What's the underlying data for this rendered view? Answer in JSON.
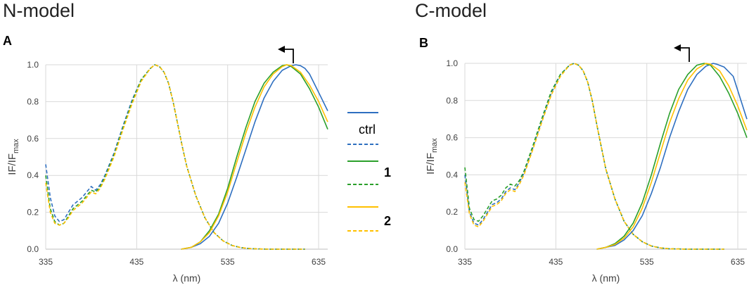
{
  "titles": {
    "left": "N-model",
    "right": "C-model"
  },
  "legend": {
    "entries": [
      {
        "label": "ctrl",
        "color": "#2E6FC0"
      },
      {
        "label": "1",
        "color": "#2BA02B"
      },
      {
        "label": "2",
        "color": "#FFC000"
      }
    ]
  },
  "colors": {
    "ctrl": "#2E6FC0",
    "1": "#2BA02B",
    "2": "#FFC000",
    "grid": "#D9D9D9",
    "axis": "#BFBFBF"
  },
  "chart_data": [
    {
      "type": "line",
      "panel": "A",
      "title": "N-model",
      "xlabel": "λ (nm)",
      "ylabel": "IF/IF",
      "ylabel_sub": "max",
      "xlim": [
        335,
        645
      ],
      "ylim": [
        0,
        1.0
      ],
      "xticks": [
        335,
        435,
        535,
        635
      ],
      "yticks": [
        "0.0",
        "0.2",
        "0.4",
        "0.6",
        "0.8",
        "1.0"
      ],
      "annotation": "arrow pointing left (blue shift of emission maximum)",
      "series": [
        {
          "name": "ctrl",
          "style": "solid",
          "kind": "emission",
          "x": [
            484,
            495,
            505,
            515,
            525,
            535,
            545,
            555,
            565,
            575,
            585,
            595,
            605,
            610,
            615,
            620,
            625,
            635,
            645
          ],
          "y": [
            0.0,
            0.01,
            0.03,
            0.07,
            0.14,
            0.25,
            0.39,
            0.54,
            0.69,
            0.82,
            0.91,
            0.97,
            0.995,
            1.0,
            0.995,
            0.98,
            0.95,
            0.85,
            0.75
          ]
        },
        {
          "name": "1",
          "style": "solid",
          "kind": "emission",
          "x": [
            484,
            495,
            505,
            515,
            525,
            535,
            545,
            555,
            565,
            575,
            585,
            595,
            600,
            605,
            615,
            625,
            635,
            645
          ],
          "y": [
            0.0,
            0.01,
            0.04,
            0.1,
            0.19,
            0.33,
            0.5,
            0.66,
            0.8,
            0.9,
            0.96,
            0.995,
            1.0,
            0.99,
            0.95,
            0.87,
            0.77,
            0.65
          ]
        },
        {
          "name": "2",
          "style": "solid",
          "kind": "emission",
          "x": [
            484,
            495,
            505,
            515,
            525,
            535,
            545,
            555,
            565,
            575,
            585,
            595,
            600,
            605,
            615,
            625,
            635,
            645
          ],
          "y": [
            0.0,
            0.01,
            0.04,
            0.09,
            0.18,
            0.31,
            0.47,
            0.63,
            0.77,
            0.88,
            0.95,
            0.99,
            1.0,
            0.995,
            0.96,
            0.89,
            0.8,
            0.69
          ]
        },
        {
          "name": "ctrl",
          "style": "dashed",
          "kind": "excitation",
          "x": [
            335,
            340,
            345,
            350,
            355,
            360,
            365,
            370,
            375,
            380,
            385,
            390,
            395,
            400,
            410,
            420,
            430,
            440,
            450,
            455,
            460,
            465,
            470,
            475,
            480,
            485,
            490,
            500,
            510,
            520,
            530,
            540,
            550,
            560,
            570,
            580,
            590,
            600,
            610,
            620
          ],
          "y": [
            0.46,
            0.28,
            0.18,
            0.15,
            0.16,
            0.2,
            0.24,
            0.26,
            0.28,
            0.31,
            0.34,
            0.32,
            0.35,
            0.4,
            0.52,
            0.67,
            0.81,
            0.92,
            0.98,
            1.0,
            0.99,
            0.96,
            0.9,
            0.8,
            0.68,
            0.56,
            0.45,
            0.29,
            0.17,
            0.09,
            0.045,
            0.02,
            0.008,
            0.003,
            0.001,
            0.0,
            0.0,
            0.0,
            0.0,
            0.0
          ]
        },
        {
          "name": "1",
          "style": "dashed",
          "kind": "excitation",
          "x": [
            335,
            340,
            345,
            350,
            355,
            360,
            365,
            370,
            375,
            380,
            385,
            390,
            395,
            400,
            410,
            420,
            430,
            440,
            450,
            455,
            460,
            465,
            470,
            475,
            480,
            485,
            490,
            500,
            510,
            520,
            530,
            540,
            550,
            560,
            570,
            580,
            590,
            600,
            610,
            620
          ],
          "y": [
            0.4,
            0.22,
            0.15,
            0.13,
            0.14,
            0.18,
            0.22,
            0.24,
            0.26,
            0.29,
            0.32,
            0.31,
            0.34,
            0.39,
            0.51,
            0.66,
            0.8,
            0.92,
            0.98,
            1.0,
            0.99,
            0.96,
            0.9,
            0.8,
            0.68,
            0.56,
            0.45,
            0.29,
            0.17,
            0.09,
            0.045,
            0.02,
            0.008,
            0.003,
            0.001,
            0.0,
            0.0,
            0.0,
            0.0,
            0.0
          ]
        },
        {
          "name": "2",
          "style": "dashed",
          "kind": "excitation",
          "x": [
            335,
            340,
            345,
            350,
            355,
            360,
            365,
            370,
            375,
            380,
            385,
            390,
            395,
            400,
            410,
            420,
            430,
            440,
            450,
            455,
            460,
            465,
            470,
            475,
            480,
            485,
            490,
            500,
            510,
            520,
            530,
            540,
            550,
            560,
            570,
            580,
            590,
            600,
            610,
            620
          ],
          "y": [
            0.36,
            0.2,
            0.14,
            0.13,
            0.14,
            0.17,
            0.21,
            0.23,
            0.25,
            0.28,
            0.31,
            0.3,
            0.33,
            0.38,
            0.5,
            0.65,
            0.79,
            0.91,
            0.98,
            1.0,
            0.99,
            0.96,
            0.9,
            0.8,
            0.68,
            0.56,
            0.45,
            0.29,
            0.17,
            0.09,
            0.045,
            0.02,
            0.008,
            0.003,
            0.001,
            0.0,
            0.0,
            0.0,
            0.0,
            0.0
          ]
        }
      ]
    },
    {
      "type": "line",
      "panel": "B",
      "title": "C-model",
      "xlabel": "λ (nm)",
      "ylabel": "IF/IF",
      "ylabel_sub": "max",
      "xlim": [
        335,
        645
      ],
      "ylim": [
        0,
        1.0
      ],
      "xticks": [
        335,
        435,
        535,
        635
      ],
      "yticks": [
        "0.0",
        "0.2",
        "0.4",
        "0.6",
        "0.8",
        "1.0"
      ],
      "annotation": "arrow pointing left (blue shift of emission maximum)",
      "series": [
        {
          "name": "ctrl",
          "style": "solid",
          "kind": "emission",
          "x": [
            480,
            490,
            500,
            510,
            520,
            530,
            540,
            550,
            560,
            570,
            580,
            590,
            600,
            608,
            612,
            620,
            630,
            645
          ],
          "y": [
            0.0,
            0.01,
            0.02,
            0.05,
            0.1,
            0.18,
            0.3,
            0.44,
            0.6,
            0.74,
            0.86,
            0.94,
            0.985,
            1.0,
            0.995,
            0.98,
            0.93,
            0.7
          ]
        },
        {
          "name": "1",
          "style": "solid",
          "kind": "emission",
          "x": [
            480,
            490,
            500,
            510,
            520,
            530,
            540,
            550,
            560,
            570,
            580,
            590,
            598,
            605,
            615,
            625,
            635,
            645
          ],
          "y": [
            0.0,
            0.01,
            0.03,
            0.07,
            0.14,
            0.25,
            0.4,
            0.57,
            0.73,
            0.86,
            0.94,
            0.99,
            1.0,
            0.99,
            0.93,
            0.84,
            0.73,
            0.6
          ]
        },
        {
          "name": "2",
          "style": "solid",
          "kind": "emission",
          "x": [
            480,
            490,
            500,
            510,
            520,
            530,
            540,
            550,
            560,
            570,
            580,
            590,
            600,
            605,
            615,
            625,
            635,
            645
          ],
          "y": [
            0.0,
            0.01,
            0.025,
            0.06,
            0.12,
            0.22,
            0.36,
            0.52,
            0.68,
            0.81,
            0.91,
            0.97,
            1.0,
            0.995,
            0.96,
            0.88,
            0.77,
            0.64
          ]
        },
        {
          "name": "ctrl",
          "style": "dashed",
          "kind": "excitation",
          "x": [
            335,
            340,
            345,
            350,
            355,
            360,
            365,
            370,
            375,
            380,
            385,
            390,
            395,
            400,
            410,
            420,
            430,
            440,
            450,
            455,
            460,
            465,
            470,
            475,
            480,
            485,
            490,
            500,
            510,
            520,
            530,
            540,
            550,
            560,
            570,
            580,
            590,
            600,
            610,
            620
          ],
          "y": [
            0.4,
            0.2,
            0.14,
            0.13,
            0.16,
            0.2,
            0.24,
            0.25,
            0.27,
            0.31,
            0.33,
            0.32,
            0.36,
            0.41,
            0.55,
            0.7,
            0.84,
            0.94,
            0.99,
            1.0,
            0.99,
            0.96,
            0.9,
            0.8,
            0.67,
            0.55,
            0.43,
            0.27,
            0.15,
            0.08,
            0.04,
            0.017,
            0.007,
            0.002,
            0.001,
            0.0,
            0.0,
            0.0,
            0.0,
            0.0
          ]
        },
        {
          "name": "1",
          "style": "dashed",
          "kind": "excitation",
          "x": [
            335,
            340,
            345,
            350,
            355,
            360,
            365,
            370,
            375,
            380,
            385,
            390,
            395,
            400,
            410,
            420,
            430,
            440,
            450,
            455,
            460,
            465,
            470,
            475,
            480,
            485,
            490,
            500,
            510,
            520,
            530,
            540,
            550,
            560,
            570,
            580,
            590,
            600,
            610,
            620
          ],
          "y": [
            0.44,
            0.22,
            0.16,
            0.15,
            0.18,
            0.22,
            0.26,
            0.27,
            0.29,
            0.33,
            0.35,
            0.34,
            0.37,
            0.42,
            0.56,
            0.71,
            0.85,
            0.94,
            0.99,
            1.0,
            0.99,
            0.96,
            0.9,
            0.8,
            0.67,
            0.55,
            0.43,
            0.27,
            0.15,
            0.08,
            0.04,
            0.017,
            0.007,
            0.002,
            0.001,
            0.0,
            0.0,
            0.0,
            0.0,
            0.0
          ]
        },
        {
          "name": "2",
          "style": "dashed",
          "kind": "excitation",
          "x": [
            335,
            340,
            345,
            350,
            355,
            360,
            365,
            370,
            375,
            380,
            385,
            390,
            395,
            400,
            410,
            420,
            430,
            440,
            450,
            455,
            460,
            465,
            470,
            475,
            480,
            485,
            490,
            500,
            510,
            520,
            530,
            540,
            550,
            560,
            570,
            580,
            590,
            600,
            610,
            620
          ],
          "y": [
            0.36,
            0.19,
            0.13,
            0.12,
            0.15,
            0.19,
            0.23,
            0.24,
            0.26,
            0.3,
            0.32,
            0.31,
            0.35,
            0.4,
            0.54,
            0.69,
            0.83,
            0.93,
            0.99,
            1.0,
            0.99,
            0.96,
            0.9,
            0.8,
            0.67,
            0.55,
            0.43,
            0.27,
            0.15,
            0.08,
            0.04,
            0.017,
            0.007,
            0.002,
            0.001,
            0.0,
            0.0,
            0.0,
            0.0,
            0.0
          ]
        }
      ]
    }
  ]
}
